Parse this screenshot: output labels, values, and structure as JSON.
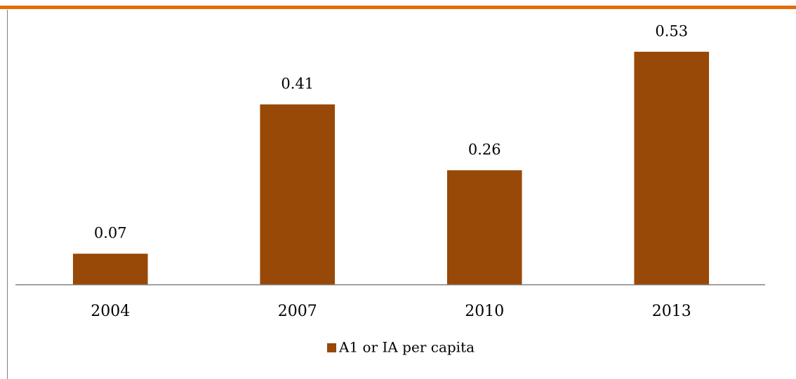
{
  "chart_data": {
    "type": "bar",
    "categories": [
      "2004",
      "2007",
      "2010",
      "2013"
    ],
    "series": [
      {
        "name": "A1 or IA per capita",
        "color": "#984807",
        "values": [
          0.07,
          0.41,
          0.26,
          0.53
        ]
      }
    ],
    "ylim": [
      0,
      0.6
    ],
    "legend": "bottom"
  }
}
